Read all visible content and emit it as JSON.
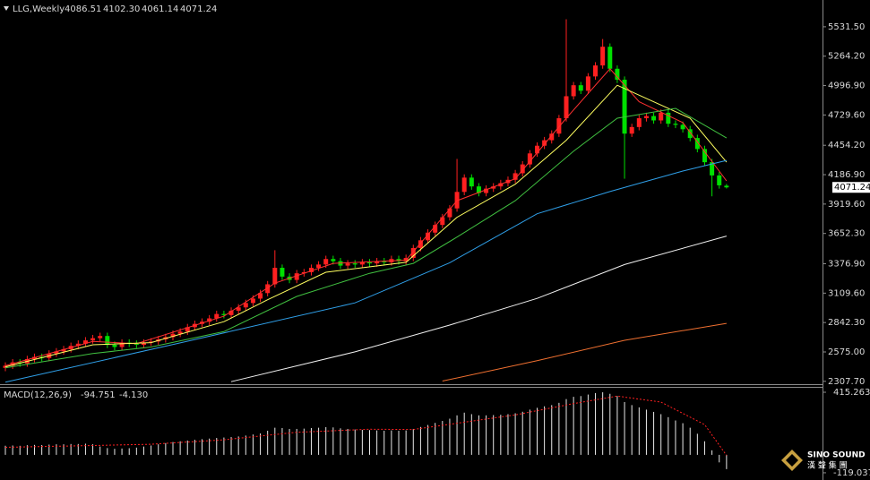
{
  "chart_data": [
    {
      "type": "candlestick",
      "title": "LLG,Weekly",
      "header_values": [
        "4086.51",
        "4102.30",
        "4061.14",
        "4071.24"
      ],
      "up_color": "#ff2020",
      "down_color": "#00e000",
      "open": [
        2430,
        2450,
        2480,
        2470,
        2510,
        2530,
        2520,
        2560,
        2580,
        2600,
        2630,
        2650,
        2680,
        2700,
        2720,
        2640,
        2620,
        2660,
        2650,
        2640,
        2660,
        2670,
        2690,
        2710,
        2740,
        2760,
        2800,
        2830,
        2850,
        2880,
        2920,
        2910,
        2950,
        2980,
        3020,
        3060,
        3110,
        3190,
        3340,
        3260,
        3230,
        3290,
        3300,
        3340,
        3370,
        3420,
        3400,
        3360,
        3380,
        3370,
        3390,
        3380,
        3400,
        3390,
        3420,
        3400,
        3430,
        3520,
        3590,
        3660,
        3730,
        3800,
        3880,
        4030,
        4160,
        4080,
        4020,
        4060,
        4080,
        4110,
        4140,
        4200,
        4280,
        4380,
        4450,
        4500,
        4560,
        4700,
        4900,
        5000,
        4950,
        5080,
        5180,
        5350,
        5150,
        5050,
        4560,
        4620,
        4700,
        4720,
        4680,
        4750,
        4650,
        4640,
        4600,
        4520,
        4420,
        4300,
        4180,
        4086.51
      ],
      "high": [
        2480,
        2510,
        2510,
        2540,
        2560,
        2560,
        2590,
        2610,
        2630,
        2660,
        2680,
        2710,
        2730,
        2750,
        2750,
        2670,
        2690,
        2690,
        2680,
        2690,
        2700,
        2720,
        2740,
        2770,
        2790,
        2830,
        2860,
        2880,
        2910,
        2950,
        2950,
        2980,
        3010,
        3050,
        3090,
        3140,
        3220,
        3500,
        3370,
        3290,
        3320,
        3330,
        3370,
        3400,
        3450,
        3450,
        3430,
        3410,
        3410,
        3420,
        3420,
        3430,
        3430,
        3450,
        3450,
        3460,
        3550,
        3620,
        3690,
        3760,
        3830,
        3910,
        4330,
        4190,
        4190,
        4110,
        4090,
        4110,
        4140,
        4170,
        4230,
        4310,
        4410,
        4480,
        4530,
        4590,
        4730,
        5600,
        5030,
        5030,
        5110,
        5210,
        5420,
        5380,
        5180,
        5080,
        4650,
        4730,
        4750,
        4750,
        4780,
        4780,
        4680,
        4670,
        4630,
        4550,
        4450,
        4330,
        4210,
        4102.3
      ],
      "low": [
        2400,
        2420,
        2440,
        2440,
        2480,
        2490,
        2490,
        2530,
        2550,
        2570,
        2600,
        2620,
        2650,
        2670,
        2610,
        2590,
        2590,
        2620,
        2610,
        2610,
        2630,
        2640,
        2660,
        2680,
        2710,
        2730,
        2770,
        2800,
        2820,
        2850,
        2880,
        2880,
        2920,
        2950,
        2990,
        3030,
        3080,
        3160,
        3230,
        3200,
        3200,
        3260,
        3270,
        3310,
        3340,
        3370,
        3330,
        3330,
        3340,
        3340,
        3350,
        3350,
        3360,
        3360,
        3370,
        3370,
        3400,
        3490,
        3560,
        3630,
        3700,
        3770,
        3850,
        4000,
        4050,
        3990,
        3990,
        4030,
        4050,
        4080,
        4110,
        4170,
        4250,
        4350,
        4420,
        4470,
        4530,
        4670,
        4870,
        4920,
        4920,
        5050,
        5150,
        5120,
        5020,
        4150,
        4530,
        4590,
        4670,
        4650,
        4650,
        4620,
        4610,
        4570,
        4490,
        4390,
        4270,
        3990,
        4060,
        4061.14
      ],
      "close": [
        2450,
        2480,
        2470,
        2510,
        2530,
        2520,
        2560,
        2580,
        2600,
        2630,
        2650,
        2680,
        2700,
        2720,
        2640,
        2620,
        2660,
        2650,
        2640,
        2660,
        2670,
        2690,
        2710,
        2740,
        2760,
        2800,
        2830,
        2850,
        2880,
        2920,
        2910,
        2950,
        2980,
        3020,
        3060,
        3110,
        3190,
        3340,
        3260,
        3230,
        3290,
        3300,
        3340,
        3370,
        3420,
        3400,
        3360,
        3380,
        3370,
        3390,
        3380,
        3400,
        3390,
        3420,
        3400,
        3430,
        3520,
        3590,
        3660,
        3730,
        3800,
        3880,
        4030,
        4160,
        4080,
        4020,
        4060,
        4080,
        4110,
        4140,
        4200,
        4280,
        4380,
        4450,
        4500,
        4560,
        4700,
        4900,
        5000,
        4950,
        5080,
        5180,
        5350,
        5150,
        5050,
        4560,
        4620,
        4700,
        4720,
        4680,
        4750,
        4650,
        4640,
        4600,
        4520,
        4420,
        4300,
        4180,
        4090,
        4071.24
      ],
      "series": [
        {
          "color": "#ff3030",
          "x": [
            0,
            12,
            18,
            30,
            37,
            45,
            55,
            62,
            70,
            77,
            83,
            87,
            93,
            99
          ],
          "values": [
            2450,
            2670,
            2650,
            2900,
            3200,
            3380,
            3410,
            3950,
            4150,
            4700,
            5150,
            4850,
            4660,
            4130
          ]
        },
        {
          "color": "#ffff60",
          "x": [
            0,
            12,
            20,
            30,
            36,
            44,
            55,
            62,
            70,
            77,
            84,
            88,
            94,
            99
          ],
          "values": [
            2440,
            2640,
            2660,
            2850,
            3050,
            3300,
            3390,
            3800,
            4100,
            4500,
            5000,
            4880,
            4700,
            4300
          ]
        },
        {
          "color": "#40c040",
          "x": [
            0,
            12,
            20,
            30,
            40,
            50,
            56,
            62,
            70,
            78,
            84,
            92,
            99
          ],
          "values": [
            2430,
            2560,
            2620,
            2760,
            3080,
            3290,
            3380,
            3620,
            3950,
            4400,
            4700,
            4790,
            4520
          ]
        },
        {
          "color": "#2f9fe8",
          "x": [
            0,
            24,
            48,
            61,
            73,
            83,
            93,
            99
          ],
          "values": [
            2300,
            2657,
            3021,
            3386,
            3831,
            4033,
            4220,
            4317
          ]
        },
        {
          "color": "#f0f0f0",
          "x": [
            31,
            48,
            61,
            73,
            85,
            99
          ],
          "values": [
            2305,
            2576,
            2819,
            3062,
            3370,
            3629
          ]
        },
        {
          "color": "#f07030",
          "x": [
            60,
            73,
            85,
            99
          ],
          "values": [
            2310,
            2495,
            2681,
            2835
          ]
        }
      ],
      "ylim": [
        2290,
        5775
      ],
      "yticks": [
        {
          "value": 2307.7,
          "label": "2307.70"
        },
        {
          "value": 2575,
          "label": "2575.00"
        },
        {
          "value": 2842.3,
          "label": "2842.30"
        },
        {
          "value": 3109.6,
          "label": "3109.60"
        },
        {
          "value": 3376.9,
          "label": "3376.90"
        },
        {
          "value": 3652.3,
          "label": "3652.30"
        },
        {
          "value": 3919.6,
          "label": "3919.60"
        },
        {
          "value": 4186.9,
          "label": "4186.90"
        },
        {
          "value": 4454.2,
          "label": "4454.20"
        },
        {
          "value": 4729.6,
          "label": "4729.60"
        },
        {
          "value": 4996.9,
          "label": "4996.90"
        },
        {
          "value": 5264.2,
          "label": "5264.20"
        },
        {
          "value": 5531.5,
          "label": "5531.50"
        }
      ],
      "grid": false
    },
    {
      "type": "macd",
      "title": "MACD(12,26,9)",
      "color": "#e8e8e8",
      "values": [
        60,
        62,
        60,
        64,
        66,
        65,
        68,
        70,
        70,
        72,
        72,
        74,
        70,
        55,
        45,
        40,
        42,
        44,
        48,
        55,
        62,
        70,
        78,
        85,
        90,
        95,
        100,
        104,
        108,
        112,
        115,
        118,
        122,
        128,
        135,
        142,
        160,
        180,
        178,
        172,
        172,
        174,
        178,
        180,
        184,
        182,
        176,
        172,
        168,
        166,
        164,
        162,
        160,
        162,
        160,
        162,
        172,
        185,
        198,
        212,
        225,
        240,
        262,
        280,
        270,
        262,
        262,
        264,
        266,
        270,
        276,
        286,
        300,
        312,
        322,
        330,
        345,
        370,
        385,
        390,
        400,
        410,
        415,
        405,
        390,
        350,
        330,
        315,
        300,
        285,
        270,
        250,
        228,
        210,
        180,
        140,
        90,
        30,
        -50,
        -94.751
      ],
      "series": [
        {
          "color": "#ff2020",
          "x": [
            0,
            12,
            20,
            30,
            40,
            50,
            56,
            62,
            70,
            78,
            84,
            90,
            96,
            99
          ],
          "values": [
            50,
            62,
            70,
            100,
            150,
            170,
            168,
            210,
            265,
            340,
            390,
            350,
            200,
            -4.13
          ],
          "value_label": "-4.130"
        }
      ],
      "ylim": [
        -155,
        451
      ],
      "yticks": [
        -119.037,
        415.263
      ]
    }
  ],
  "logo": {
    "name": "SINO SOUND",
    "sub": "漢 聲 集 團"
  }
}
